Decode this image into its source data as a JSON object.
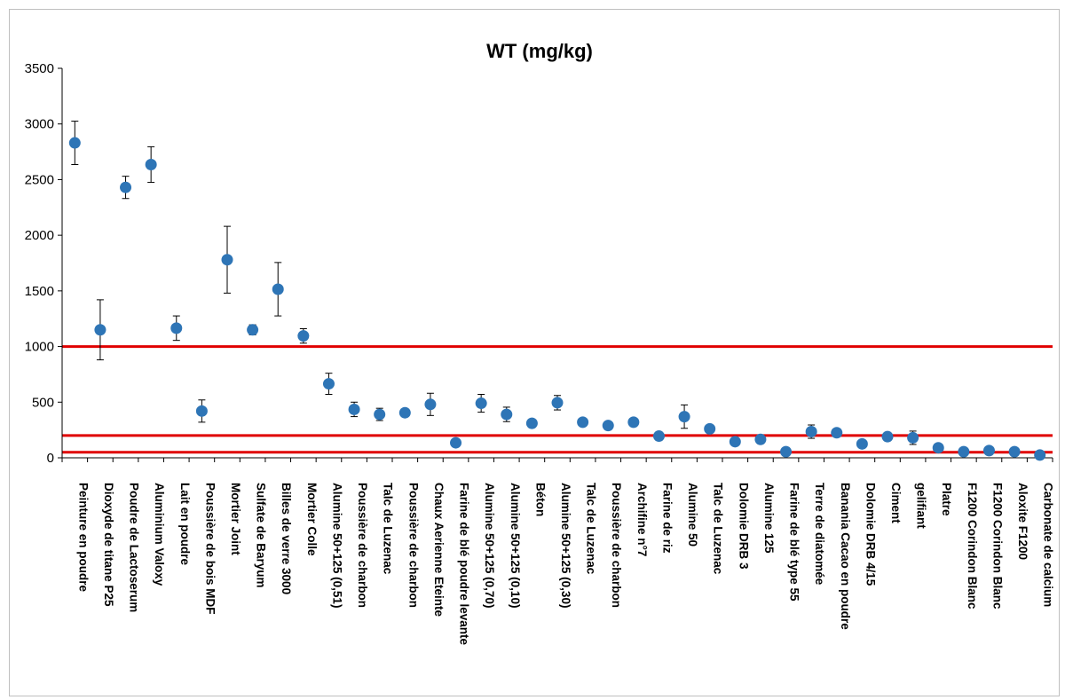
{
  "chart_data": {
    "type": "scatter",
    "title": "WT (mg/kg)",
    "xlabel": "",
    "ylabel": "",
    "ylim": [
      0,
      3500
    ],
    "yticks": [
      0,
      500,
      1000,
      1500,
      2000,
      2500,
      3000,
      3500
    ],
    "grid": false,
    "legend": "none",
    "marker_color": "#2e75b6",
    "errorbar_color": "#000000",
    "reference_line_color": "#e00000",
    "reference_lines": [
      1000,
      200,
      50
    ],
    "categories": [
      "Peinture en poudre",
      "Dioxyde de titane P25",
      "Poudre de Lactoserum",
      "Aluminium Valoxy",
      "Lait en poudre",
      "Poussière de bois MDF",
      "Mortier Joint",
      "Sulfate de Baryum",
      "Billes de verre 3000",
      "Mortier Colle",
      "Alumine 50+125 (0,51)",
      "Poussière de charbon",
      "Talc de Luzenac",
      "Poussière de charbon",
      "Chaux Aerienne Eteinte",
      "Farine de blé poudre levante",
      "Alumine 50+125 (0,70)",
      "Alumine 50+125 (0,10)",
      "Béton",
      "Alumine 50+125 (0,30)",
      "Talc de Luzenac",
      "Poussière de charbon",
      "Archifine n°7",
      "Farine de riz",
      "Alumine 50",
      "Talc de Luzenac",
      "Dolomie DRB 3",
      "Alumine 125",
      "Farine de blé type 55",
      "Terre de diatomée",
      "Banania Cacao en poudre",
      "Dolomie DRB 4/15",
      "Ciment",
      "gelifiant",
      "Platre",
      "F1200 Corindon Blanc",
      "F1200 Corindon Blanc",
      "Aloxite F1200",
      "Carbonate de calcium"
    ],
    "values": [
      2830,
      1150,
      2430,
      2635,
      1165,
      420,
      1780,
      1150,
      1515,
      1095,
      665,
      435,
      390,
      405,
      480,
      135,
      490,
      390,
      310,
      495,
      320,
      290,
      320,
      195,
      370,
      260,
      145,
      165,
      55,
      235,
      225,
      125,
      190,
      180,
      90,
      55,
      65,
      55,
      25
    ],
    "errors": [
      195,
      270,
      100,
      160,
      110,
      100,
      300,
      45,
      240,
      65,
      95,
      65,
      55,
      0,
      100,
      0,
      80,
      65,
      0,
      65,
      0,
      0,
      0,
      0,
      105,
      0,
      0,
      0,
      0,
      60,
      0,
      0,
      0,
      60,
      0,
      0,
      0,
      0,
      0
    ]
  }
}
